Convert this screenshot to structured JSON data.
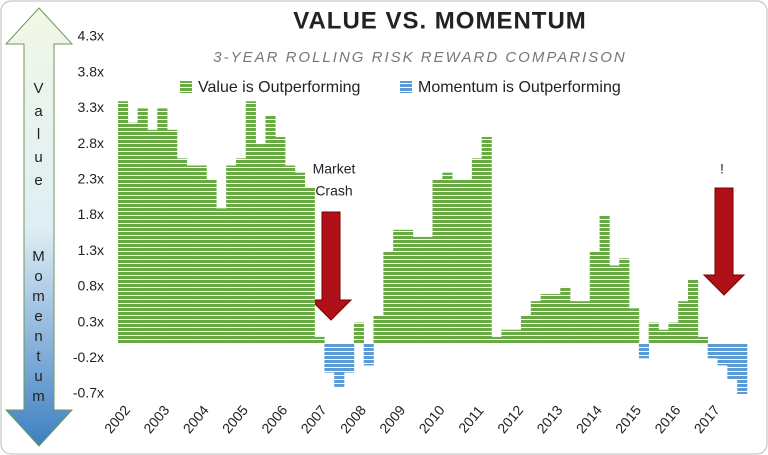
{
  "chart_data": {
    "type": "bar",
    "title": "VALUE VS. MOMENTUM",
    "subtitle": "3-YEAR ROLLING RISK REWARD COMPARISON",
    "annotations": [
      "Market",
      "Crash",
      "!"
    ],
    "side_labels": [
      "Value",
      "Momentum"
    ],
    "categories": [
      "2002",
      null,
      null,
      null,
      "2003",
      null,
      null,
      null,
      "2004",
      null,
      null,
      null,
      "2005",
      null,
      null,
      null,
      "2006",
      null,
      null,
      null,
      "2007",
      null,
      null,
      null,
      "2008",
      null,
      null,
      null,
      "2009",
      null,
      null,
      null,
      "2010",
      null,
      null,
      null,
      "2011",
      null,
      null,
      null,
      "2012",
      null,
      null,
      null,
      "2013",
      null,
      null,
      null,
      "2014",
      null,
      null,
      null,
      "2015",
      null,
      null,
      null,
      "2016",
      null,
      null,
      null,
      "2017",
      null,
      null,
      null
    ],
    "series": [
      {
        "name": "Value is Outperforming",
        "color": "#6aaa45",
        "values": [
          3.4,
          3.1,
          3.3,
          3.0,
          3.3,
          3.0,
          2.6,
          2.5,
          2.5,
          2.3,
          1.9,
          2.5,
          2.6,
          3.4,
          2.8,
          3.2,
          2.9,
          2.5,
          2.4,
          2.2,
          0.1,
          null,
          null,
          null,
          0.3,
          null,
          0.4,
          1.3,
          1.6,
          1.6,
          1.5,
          1.5,
          2.3,
          2.4,
          2.3,
          2.3,
          2.6,
          2.9,
          0.1,
          0.2,
          0.2,
          0.4,
          0.6,
          0.7,
          0.7,
          0.8,
          0.6,
          0.6,
          1.3,
          1.8,
          1.1,
          1.2,
          0.5,
          null,
          0.3,
          0.2,
          0.3,
          0.6,
          0.9,
          0.1,
          null,
          null,
          null,
          null
        ]
      },
      {
        "name": "Momentum is Outperforming",
        "color": "#5b9bd5",
        "values": [
          null,
          null,
          null,
          null,
          null,
          null,
          null,
          null,
          null,
          null,
          null,
          null,
          null,
          null,
          null,
          null,
          null,
          null,
          null,
          null,
          null,
          -0.4,
          -0.6,
          -0.4,
          null,
          -0.3,
          null,
          null,
          null,
          null,
          null,
          null,
          null,
          null,
          null,
          null,
          null,
          null,
          null,
          null,
          null,
          null,
          null,
          null,
          null,
          null,
          null,
          null,
          null,
          null,
          null,
          null,
          null,
          -0.2,
          null,
          null,
          null,
          null,
          null,
          null,
          -0.2,
          -0.3,
          -0.5,
          -0.7
        ]
      }
    ],
    "ylim": [
      -0.7,
      4.3
    ],
    "yticks": [
      {
        "value": -0.7,
        "label": "-0.7x"
      },
      {
        "value": -0.2,
        "label": "-0.2x"
      },
      {
        "value": 0.3,
        "label": "0.3x"
      },
      {
        "value": 0.8,
        "label": "0.8x"
      },
      {
        "value": 1.3,
        "label": "1.3x"
      },
      {
        "value": 1.8,
        "label": "1.8x"
      },
      {
        "value": 2.3,
        "label": "2.3x"
      },
      {
        "value": 2.8,
        "label": "2.8x"
      },
      {
        "value": 3.3,
        "label": "3.3x"
      },
      {
        "value": 3.8,
        "label": "3.8x"
      },
      {
        "value": 4.3,
        "label": "4.3x"
      }
    ],
    "grid": false
  }
}
